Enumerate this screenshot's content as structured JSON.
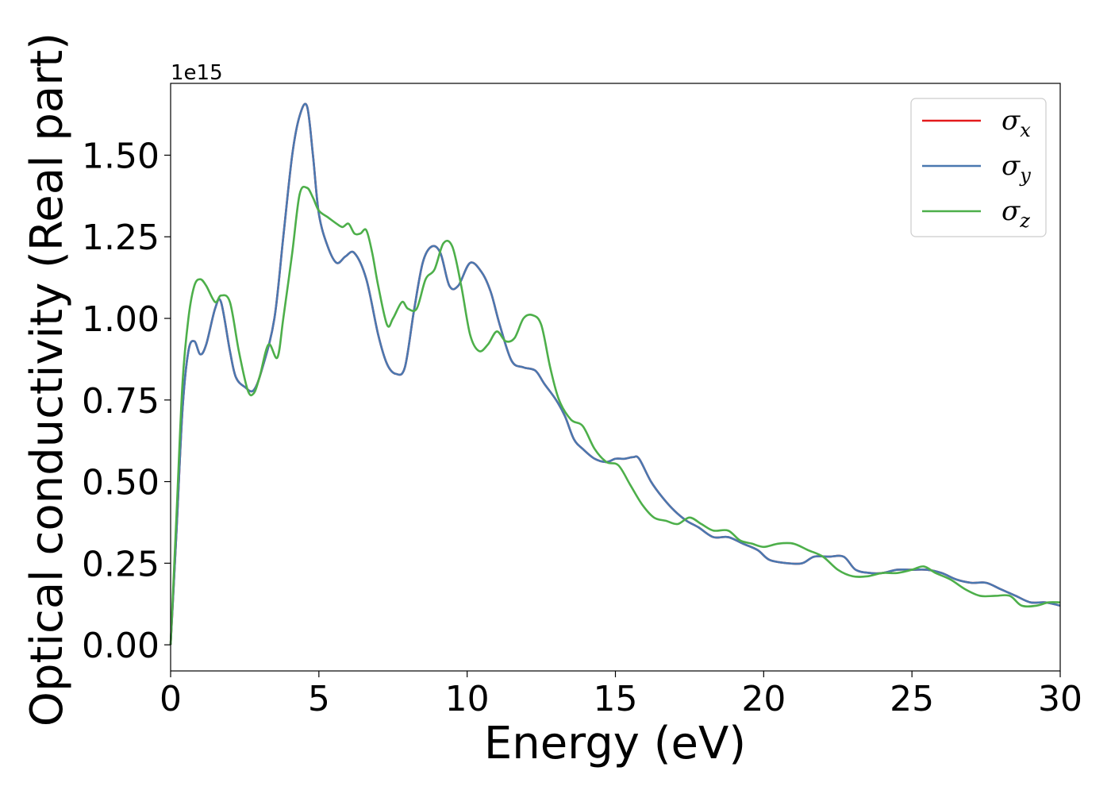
{
  "chart_data": {
    "type": "line",
    "xlabel": "Energy (eV)",
    "ylabel": "Optical conductivity (Real part)",
    "y_offset_label": "1e15",
    "xlim": [
      0,
      30
    ],
    "ylim": [
      -0.08,
      1.72
    ],
    "x_ticks": [
      0,
      5,
      10,
      15,
      20,
      25,
      30
    ],
    "x_tick_labels": [
      "0",
      "5",
      "10",
      "15",
      "20",
      "25",
      "30"
    ],
    "y_ticks": [
      0,
      0.25,
      0.5,
      0.75,
      1.0,
      1.25,
      1.5
    ],
    "y_tick_labels": [
      "0.00",
      "0.25",
      "0.50",
      "0.75",
      "1.00",
      "1.25",
      "1.50"
    ],
    "grid": false,
    "legend_position": "top-right",
    "series": [
      {
        "name": "σx",
        "symbol": "σ",
        "subscript": "x",
        "color": "#e41a1c",
        "x": [
          0,
          0.2,
          0.4,
          0.6,
          0.8,
          1.0,
          1.2,
          1.5,
          1.7,
          2.0,
          2.2,
          2.5,
          2.8,
          3.1,
          3.5,
          3.8,
          4.1,
          4.35,
          4.6,
          4.8,
          5.0,
          5.3,
          5.6,
          5.9,
          6.2,
          6.6,
          7.0,
          7.3,
          7.6,
          7.9,
          8.2,
          8.5,
          8.8,
          9.1,
          9.4,
          9.7,
          10.1,
          10.5,
          10.8,
          11.1,
          11.5,
          11.9,
          12.3,
          12.6,
          13.0,
          13.3,
          13.6,
          13.9,
          14.3,
          14.7,
          15.0,
          15.3,
          15.6,
          15.8,
          16.2,
          16.6,
          17.0,
          17.4,
          17.8,
          18.3,
          18.8,
          19.3,
          19.8,
          20.2,
          20.8,
          21.3,
          21.7,
          22.2,
          22.7,
          23.1,
          23.6,
          24.0,
          24.5,
          25.0,
          25.5,
          26.0,
          26.5,
          27.0,
          27.5,
          28.0,
          28.5,
          29.0,
          29.5,
          30.0
        ],
        "y": [
          0.0,
          0.35,
          0.72,
          0.9,
          0.93,
          0.89,
          0.92,
          1.03,
          1.05,
          0.9,
          0.82,
          0.79,
          0.78,
          0.85,
          1.0,
          1.25,
          1.5,
          1.62,
          1.65,
          1.5,
          1.32,
          1.22,
          1.17,
          1.19,
          1.2,
          1.12,
          0.95,
          0.86,
          0.83,
          0.85,
          1.02,
          1.17,
          1.22,
          1.2,
          1.1,
          1.1,
          1.17,
          1.14,
          1.08,
          0.98,
          0.87,
          0.85,
          0.84,
          0.8,
          0.75,
          0.7,
          0.63,
          0.6,
          0.57,
          0.56,
          0.57,
          0.57,
          0.575,
          0.57,
          0.5,
          0.45,
          0.41,
          0.38,
          0.36,
          0.33,
          0.33,
          0.31,
          0.29,
          0.26,
          0.25,
          0.25,
          0.27,
          0.27,
          0.27,
          0.23,
          0.22,
          0.22,
          0.23,
          0.23,
          0.23,
          0.22,
          0.2,
          0.19,
          0.19,
          0.17,
          0.15,
          0.13,
          0.13,
          0.12
        ]
      },
      {
        "name": "σy",
        "symbol": "σ",
        "subscript": "y",
        "color": "#4a78b0",
        "x": [
          0,
          0.2,
          0.4,
          0.6,
          0.8,
          1.0,
          1.2,
          1.5,
          1.7,
          2.0,
          2.2,
          2.5,
          2.8,
          3.1,
          3.5,
          3.8,
          4.1,
          4.35,
          4.6,
          4.8,
          5.0,
          5.3,
          5.6,
          5.9,
          6.2,
          6.6,
          7.0,
          7.3,
          7.6,
          7.9,
          8.2,
          8.5,
          8.8,
          9.1,
          9.4,
          9.7,
          10.1,
          10.5,
          10.8,
          11.1,
          11.5,
          11.9,
          12.3,
          12.6,
          13.0,
          13.3,
          13.6,
          13.9,
          14.3,
          14.7,
          15.0,
          15.3,
          15.6,
          15.8,
          16.2,
          16.6,
          17.0,
          17.4,
          17.8,
          18.3,
          18.8,
          19.3,
          19.8,
          20.2,
          20.8,
          21.3,
          21.7,
          22.2,
          22.7,
          23.1,
          23.6,
          24.0,
          24.5,
          25.0,
          25.5,
          26.0,
          26.5,
          27.0,
          27.5,
          28.0,
          28.5,
          29.0,
          29.5,
          30.0
        ],
        "y": [
          0.0,
          0.35,
          0.72,
          0.9,
          0.93,
          0.89,
          0.92,
          1.03,
          1.05,
          0.9,
          0.82,
          0.79,
          0.78,
          0.85,
          1.0,
          1.25,
          1.5,
          1.62,
          1.65,
          1.5,
          1.32,
          1.22,
          1.17,
          1.19,
          1.2,
          1.12,
          0.95,
          0.86,
          0.83,
          0.85,
          1.02,
          1.17,
          1.22,
          1.2,
          1.1,
          1.1,
          1.17,
          1.14,
          1.08,
          0.98,
          0.87,
          0.85,
          0.84,
          0.8,
          0.75,
          0.7,
          0.63,
          0.6,
          0.57,
          0.56,
          0.57,
          0.57,
          0.575,
          0.57,
          0.5,
          0.45,
          0.41,
          0.38,
          0.36,
          0.33,
          0.33,
          0.31,
          0.29,
          0.26,
          0.25,
          0.25,
          0.27,
          0.27,
          0.27,
          0.23,
          0.22,
          0.22,
          0.23,
          0.23,
          0.23,
          0.22,
          0.2,
          0.19,
          0.19,
          0.17,
          0.15,
          0.13,
          0.13,
          0.12
        ]
      },
      {
        "name": "σz",
        "symbol": "σ",
        "subscript": "z",
        "color": "#4daf4a",
        "x": [
          0,
          0.2,
          0.4,
          0.6,
          0.8,
          1.0,
          1.2,
          1.5,
          1.7,
          2.0,
          2.3,
          2.6,
          2.8,
          3.0,
          3.3,
          3.6,
          3.8,
          4.1,
          4.35,
          4.6,
          4.8,
          5.0,
          5.3,
          5.6,
          5.8,
          6.0,
          6.2,
          6.4,
          6.6,
          6.8,
          7.0,
          7.3,
          7.5,
          7.8,
          8.0,
          8.3,
          8.6,
          8.9,
          9.2,
          9.5,
          9.8,
          10.1,
          10.4,
          10.7,
          11.0,
          11.3,
          11.6,
          11.9,
          12.2,
          12.5,
          12.8,
          13.1,
          13.5,
          13.9,
          14.3,
          14.7,
          15.1,
          15.5,
          15.9,
          16.3,
          16.7,
          17.1,
          17.5,
          17.9,
          18.3,
          18.8,
          19.2,
          19.6,
          20.0,
          20.5,
          21.0,
          21.5,
          22.0,
          22.5,
          23.0,
          23.5,
          24.0,
          24.5,
          25.0,
          25.4,
          25.8,
          26.3,
          26.8,
          27.3,
          27.8,
          28.3,
          28.7,
          29.2,
          29.6,
          30.0
        ],
        "y": [
          0.0,
          0.4,
          0.8,
          1.0,
          1.1,
          1.12,
          1.1,
          1.05,
          1.07,
          1.05,
          0.9,
          0.78,
          0.77,
          0.82,
          0.92,
          0.88,
          1.0,
          1.2,
          1.38,
          1.4,
          1.37,
          1.33,
          1.31,
          1.29,
          1.28,
          1.29,
          1.26,
          1.26,
          1.27,
          1.2,
          1.1,
          0.98,
          1.0,
          1.05,
          1.03,
          1.03,
          1.12,
          1.15,
          1.23,
          1.22,
          1.1,
          0.95,
          0.9,
          0.92,
          0.96,
          0.93,
          0.94,
          1.0,
          1.01,
          0.98,
          0.85,
          0.75,
          0.69,
          0.67,
          0.6,
          0.56,
          0.55,
          0.49,
          0.43,
          0.39,
          0.38,
          0.37,
          0.39,
          0.37,
          0.35,
          0.35,
          0.32,
          0.31,
          0.3,
          0.31,
          0.31,
          0.29,
          0.27,
          0.23,
          0.21,
          0.21,
          0.22,
          0.22,
          0.23,
          0.24,
          0.22,
          0.2,
          0.17,
          0.15,
          0.15,
          0.15,
          0.12,
          0.12,
          0.13,
          0.13
        ]
      }
    ]
  }
}
